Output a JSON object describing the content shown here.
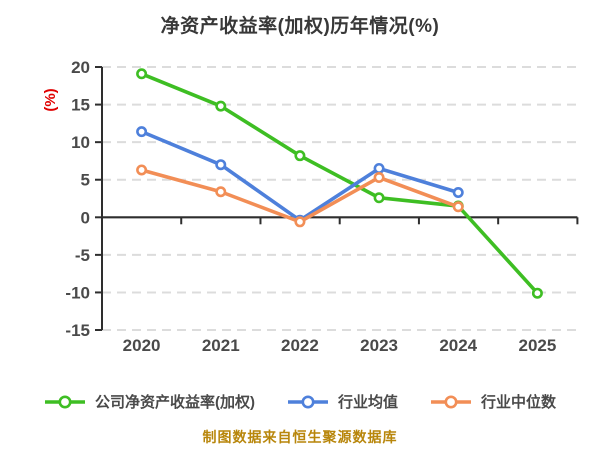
{
  "title": "净资产收益率(加权)历年情况(%)",
  "caption": "制图数据来自恒生聚源数据库",
  "colors": {
    "title": "#383838",
    "axis": "#2e2e2e",
    "grid": "#dcdcdc",
    "tick_label": "#4a4a4a",
    "legend_text": "#4a4a4a",
    "ylabel": "#e00000",
    "caption": "#b8860b",
    "marker_fill": "#ffffff"
  },
  "chart_data": {
    "type": "line",
    "title": "净资产收益率(加权)历年情况(%)",
    "xlabel": "",
    "ylabel": "(%)",
    "categories": [
      "2020",
      "2021",
      "2022",
      "2023",
      "2024",
      "2025"
    ],
    "series": [
      {
        "name": "公司净资产收益率(加权)",
        "color": "#3ebe23",
        "values": [
          19.1,
          14.8,
          8.2,
          2.6,
          1.5,
          -10.1
        ]
      },
      {
        "name": "行业均值",
        "color": "#4e80db",
        "values": [
          11.4,
          7.0,
          -0.4,
          6.5,
          3.3,
          null
        ]
      },
      {
        "name": "行业中位数",
        "color": "#f28e56",
        "values": [
          6.3,
          3.4,
          -0.6,
          5.3,
          1.4,
          null
        ]
      }
    ],
    "yticks": [
      20,
      15,
      10,
      5,
      0,
      -5,
      -10,
      -15
    ],
    "ylim": [
      -15,
      20
    ],
    "grid": "horizontal-dashed",
    "legend_position": "bottom",
    "marker": "circle-white-fill"
  }
}
